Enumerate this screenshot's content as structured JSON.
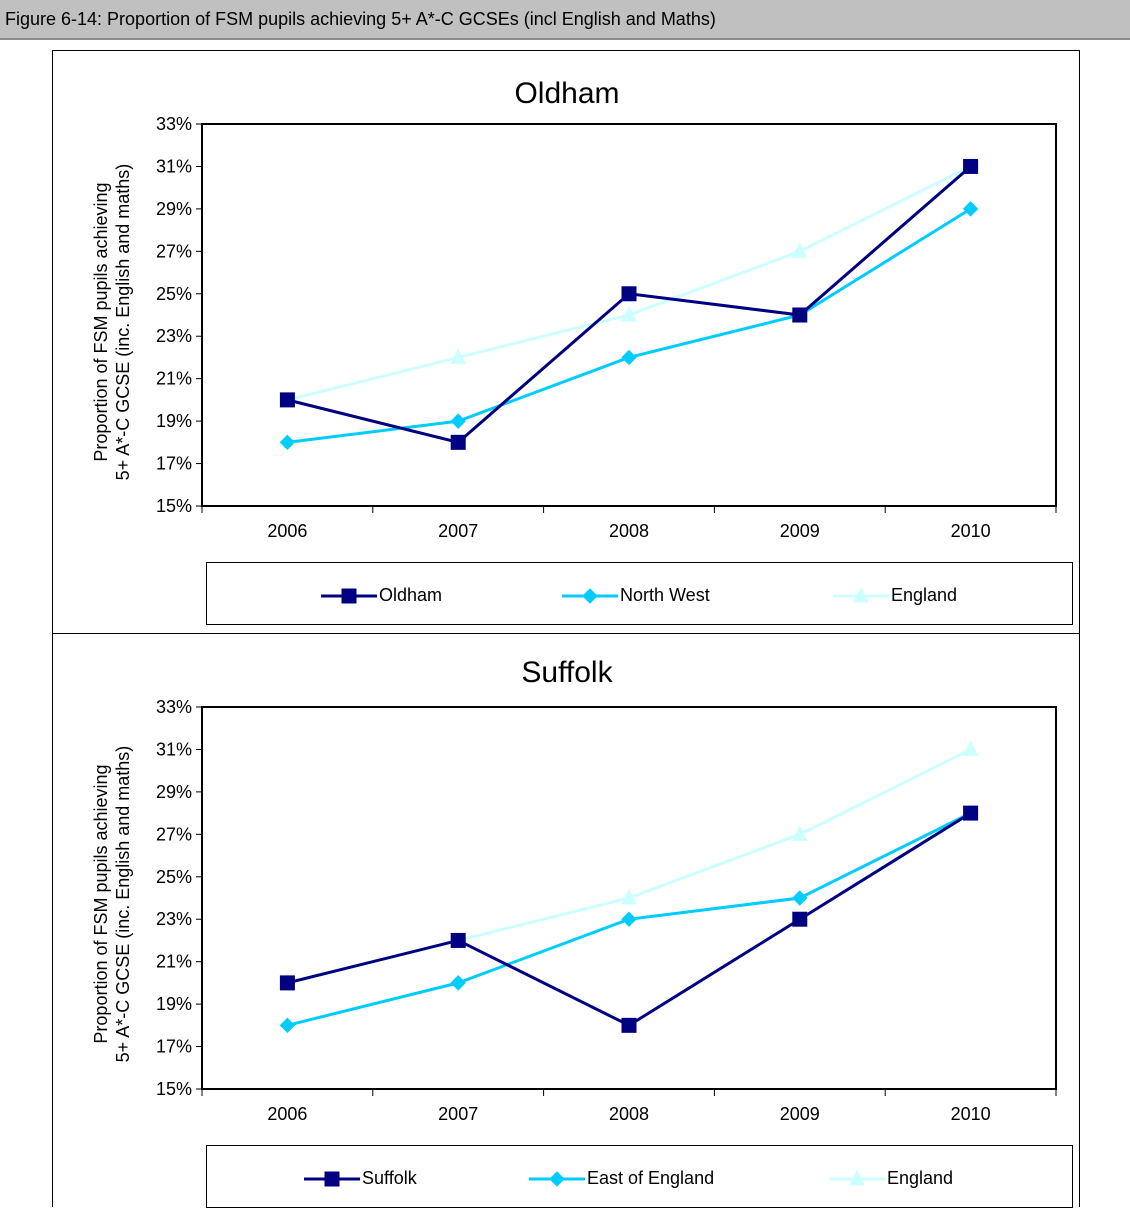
{
  "caption": "Figure 6-14: Proportion of FSM pupils achieving 5+ A*-C GCSEs (incl English and Maths)",
  "colors": {
    "dark_navy": "#000080",
    "sky_blue": "#00ccff",
    "pale_cyan": "#ccffff",
    "caption_bg": "#c0c0c0"
  },
  "chart_data": [
    {
      "type": "line",
      "title": "Oldham",
      "ylabel_line1": "Proportion of FSM pupils achieving",
      "ylabel_line2": "5+ A*-C GCSE (inc. English and maths)",
      "xlabel": "",
      "categories": [
        "2006",
        "2007",
        "2008",
        "2009",
        "2010"
      ],
      "ylim": [
        15,
        33
      ],
      "yticks": [
        "15%",
        "17%",
        "19%",
        "21%",
        "23%",
        "25%",
        "27%",
        "29%",
        "31%",
        "33%"
      ],
      "grid": false,
      "legend_position": "bottom",
      "series": [
        {
          "name": "Oldham",
          "color": "#000080",
          "marker": "square",
          "values": [
            20,
            18,
            25,
            24,
            31
          ]
        },
        {
          "name": "North West",
          "color": "#00ccff",
          "marker": "diamond",
          "values": [
            18,
            19,
            22,
            24,
            29
          ]
        },
        {
          "name": "England",
          "color": "#ccffff",
          "marker": "triangle",
          "values": [
            20,
            22,
            24,
            27,
            31
          ]
        }
      ]
    },
    {
      "type": "line",
      "title": "Suffolk",
      "ylabel_line1": "Proportion of FSM pupils achieving",
      "ylabel_line2": "5+ A*-C GCSE (inc. English and maths)",
      "xlabel": "",
      "categories": [
        "2006",
        "2007",
        "2008",
        "2009",
        "2010"
      ],
      "ylim": [
        15,
        33
      ],
      "yticks": [
        "15%",
        "17%",
        "19%",
        "21%",
        "23%",
        "25%",
        "27%",
        "29%",
        "31%",
        "33%"
      ],
      "grid": false,
      "legend_position": "bottom",
      "series": [
        {
          "name": "Suffolk",
          "color": "#000080",
          "marker": "square",
          "values": [
            20,
            22,
            18,
            23,
            28
          ]
        },
        {
          "name": "East of England",
          "color": "#00ccff",
          "marker": "diamond",
          "values": [
            18,
            20,
            23,
            24,
            28
          ]
        },
        {
          "name": "England",
          "color": "#ccffff",
          "marker": "triangle",
          "values": [
            20,
            22,
            24,
            27,
            31
          ]
        }
      ]
    }
  ]
}
